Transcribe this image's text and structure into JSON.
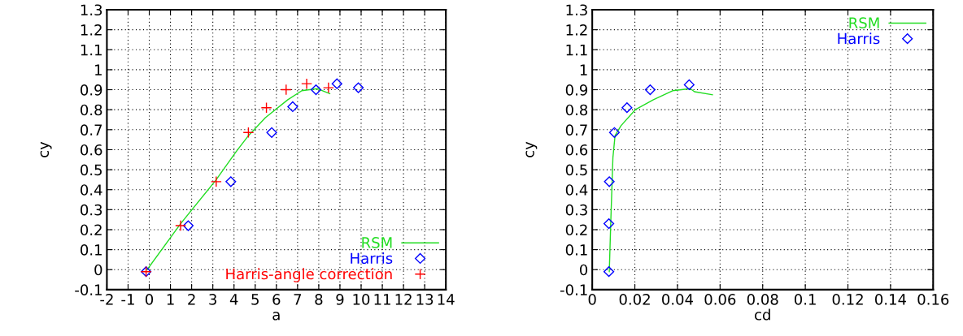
{
  "chart_data": [
    {
      "type": "line",
      "xlabel": "a",
      "ylabel": "cy",
      "xlim": [
        -2,
        14
      ],
      "ylim": [
        -0.1,
        1.3
      ],
      "xticks": [
        -2,
        -1,
        0,
        1,
        2,
        3,
        4,
        5,
        6,
        7,
        8,
        9,
        10,
        11,
        12,
        13,
        14
      ],
      "yticks": [
        -0.1,
        0,
        0.1,
        0.2,
        0.3,
        0.4,
        0.5,
        0.6,
        0.7,
        0.8,
        0.9,
        1,
        1.1,
        1.2,
        1.3
      ],
      "grid": true,
      "legend": "bottom right",
      "series": [
        {
          "name": "RSM",
          "color": "#22dd22",
          "marker": "none",
          "line_style": "solid",
          "x": [
            -0.1,
            1.48,
            3.16,
            4.1,
            4.68,
            5.48,
            6.54,
            7.2,
            7.94,
            8.52
          ],
          "values": [
            0.0,
            0.23,
            0.45,
            0.59,
            0.67,
            0.76,
            0.85,
            0.895,
            0.905,
            0.88
          ]
        },
        {
          "name": "Harris",
          "type": "scatter",
          "color": "#0000ff",
          "marker": "diamond",
          "x": [
            -0.15,
            1.84,
            3.85,
            5.78,
            6.77,
            7.87,
            8.86,
            9.87
          ],
          "values": [
            -0.01,
            0.22,
            0.44,
            0.686,
            0.815,
            0.9,
            0.93,
            0.91
          ]
        },
        {
          "name": "Harris-angle correction",
          "type": "scatter",
          "color": "#ff0000",
          "marker": "cross",
          "x": [
            -0.15,
            1.48,
            3.16,
            4.68,
            5.53,
            6.46,
            7.43,
            8.46
          ],
          "values": [
            -0.01,
            0.22,
            0.44,
            0.686,
            0.81,
            0.9,
            0.93,
            0.91
          ]
        }
      ]
    },
    {
      "type": "line",
      "xlabel": "cd",
      "ylabel": "cy",
      "xlim": [
        0,
        0.16
      ],
      "ylim": [
        -0.1,
        1.3
      ],
      "xticks": [
        0,
        0.02,
        0.04,
        0.06,
        0.08,
        0.1,
        0.12,
        0.14,
        0.16
      ],
      "yticks": [
        -0.1,
        0,
        0.1,
        0.2,
        0.3,
        0.4,
        0.5,
        0.6,
        0.7,
        0.8,
        0.9,
        1,
        1.1,
        1.2,
        1.3
      ],
      "grid": true,
      "legend": "top right",
      "series": [
        {
          "name": "RSM",
          "color": "#22dd22",
          "marker": "none",
          "line_style": "solid",
          "x": [
            0.008,
            0.0087,
            0.0097,
            0.0107,
            0.0135,
            0.0202,
            0.0287,
            0.0377,
            0.046,
            0.048,
            0.0564
          ],
          "values": [
            -0.01,
            0.24,
            0.56,
            0.67,
            0.72,
            0.8,
            0.85,
            0.895,
            0.905,
            0.89,
            0.875
          ]
        },
        {
          "name": "Harris",
          "type": "scatter",
          "color": "#0000ff",
          "marker": "diamond",
          "x": [
            0.0078,
            0.0078,
            0.008,
            0.0104,
            0.0163,
            0.0272,
            0.0455
          ],
          "values": [
            -0.01,
            0.23,
            0.44,
            0.686,
            0.81,
            0.9,
            0.925
          ]
        }
      ]
    }
  ]
}
